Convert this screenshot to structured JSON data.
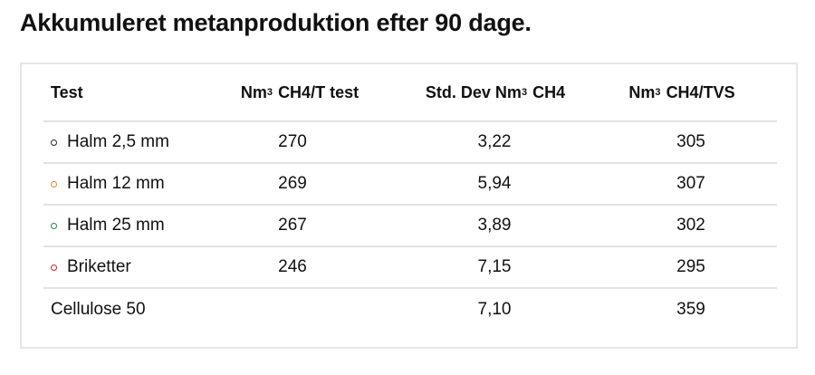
{
  "title": "Akkumuleret metanproduktion efter 90 dage.",
  "table": {
    "headers": {
      "test": "Test",
      "col1_pre": "Nm",
      "col1_sup": "3",
      "col1_post": "CH4/T test",
      "col2_pre": "Std. Dev Nm",
      "col2_sup": "3",
      "col2_post": "CH4",
      "col3_pre": "Nm",
      "col3_sup": "3",
      "col3_post": "CH4/TVS"
    },
    "rows": [
      {
        "test": "Halm 2,5 mm",
        "value1": "270",
        "std_dev": "3,22",
        "value3": "305",
        "bullet_color": "#1f2a44"
      },
      {
        "test": "Halm 12 mm",
        "value1": "269",
        "std_dev": "5,94",
        "value3": "307",
        "bullet_color": "#e08a2c"
      },
      {
        "test": "Halm 25 mm",
        "value1": "267",
        "std_dev": "3,89",
        "value3": "302",
        "bullet_color": "#2f8a3a"
      },
      {
        "test": "Briketter",
        "value1": "246",
        "std_dev": "7,15",
        "value3": "295",
        "bullet_color": "#c0262d"
      },
      {
        "test": "Cellulose 50",
        "value1": "",
        "std_dev": "7,10",
        "value3": "359"
      }
    ]
  }
}
